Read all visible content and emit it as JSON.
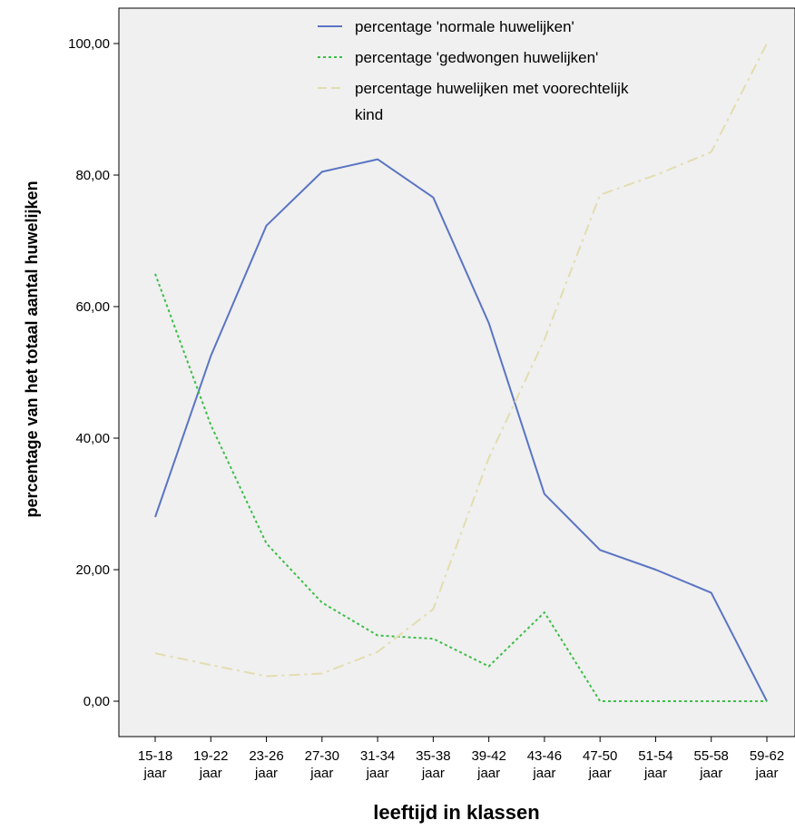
{
  "chart_data": {
    "type": "line",
    "xlabel": "leeftijd in klassen",
    "ylabel": "percentage van het totaal aantal huwelijken",
    "categories": [
      {
        "top": "15-18",
        "bottom": "jaar"
      },
      {
        "top": "19-22",
        "bottom": "jaar"
      },
      {
        "top": "23-26",
        "bottom": "jaar"
      },
      {
        "top": "27-30",
        "bottom": "jaar"
      },
      {
        "top": "31-34",
        "bottom": "jaar"
      },
      {
        "top": "35-38",
        "bottom": "jaar"
      },
      {
        "top": "39-42",
        "bottom": "jaar"
      },
      {
        "top": "43-46",
        "bottom": "jaar"
      },
      {
        "top": "47-50",
        "bottom": "jaar"
      },
      {
        "top": "51-54",
        "bottom": "jaar"
      },
      {
        "top": "55-58",
        "bottom": "jaar"
      },
      {
        "top": "59-62",
        "bottom": "jaar"
      }
    ],
    "ylim": [
      0,
      100
    ],
    "yticks": [
      "0,00",
      "20,00",
      "40,00",
      "60,00",
      "80,00",
      "100,00"
    ],
    "grid": false,
    "legend_position": "top-center",
    "series": [
      {
        "name": "percentage 'normale huwelijken'",
        "style": "solid",
        "color": "#5a74c4",
        "values": [
          28,
          52.5,
          72.3,
          80.5,
          82.4,
          76.6,
          57.5,
          31.5,
          23,
          20,
          16.5,
          0
        ]
      },
      {
        "name": "percentage 'gedwongen huwelijken'",
        "style": "dotted",
        "color": "#3cbe46",
        "values": [
          65,
          42,
          24,
          15,
          10,
          9.5,
          5.3,
          13.5,
          0,
          0,
          0,
          0
        ]
      },
      {
        "name_lines": [
          "percentage huwelijken met voorechtelijk",
          "kind"
        ],
        "style": "dashdot",
        "color": "#e3ddb0",
        "values": [
          7.3,
          5.5,
          3.8,
          4.2,
          7.5,
          14,
          37,
          55,
          77,
          80,
          83.5,
          100
        ]
      }
    ]
  }
}
